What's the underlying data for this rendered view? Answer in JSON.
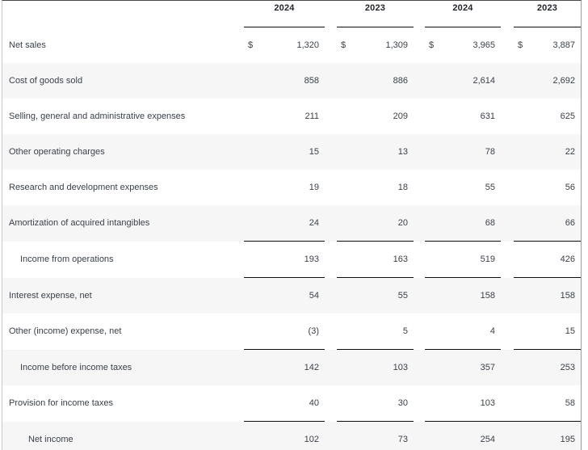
{
  "table": {
    "currency_symbol": "$",
    "columns": [
      "2024",
      "2023",
      "2024",
      "2023"
    ],
    "rows": [
      {
        "label": "Net sales",
        "indent": 0,
        "shade": false,
        "dollar": true,
        "values": [
          "1,320",
          "1,309",
          "3,965",
          "3,887"
        ]
      },
      {
        "label": "Cost of goods sold",
        "indent": 0,
        "shade": true,
        "values": [
          "858",
          "886",
          "2,614",
          "2,692"
        ]
      },
      {
        "label": "Selling, general and administrative expenses",
        "indent": 0,
        "shade": false,
        "values": [
          "211",
          "209",
          "631",
          "625"
        ]
      },
      {
        "label": "Other operating charges",
        "indent": 0,
        "shade": true,
        "values": [
          "15",
          "13",
          "78",
          "22"
        ]
      },
      {
        "label": "Research and development expenses",
        "indent": 0,
        "shade": false,
        "values": [
          "19",
          "18",
          "55",
          "56"
        ]
      },
      {
        "label": "Amortization of acquired intangibles",
        "indent": 0,
        "shade": true,
        "values": [
          "24",
          "20",
          "68",
          "66"
        ]
      },
      {
        "label": "Income from operations",
        "indent": 1,
        "shade": false,
        "rule_top": true,
        "rule_bottom": true,
        "values": [
          "193",
          "163",
          "519",
          "426"
        ]
      },
      {
        "label": "Interest expense, net",
        "indent": 0,
        "shade": true,
        "values": [
          "54",
          "55",
          "158",
          "158"
        ]
      },
      {
        "label": "Other (income) expense, net",
        "indent": 0,
        "shade": false,
        "values": [
          "(3)",
          "5",
          "4",
          "15"
        ]
      },
      {
        "label": "Income before income taxes",
        "indent": 1,
        "shade": true,
        "rule_top": true,
        "values": [
          "142",
          "103",
          "357",
          "253"
        ]
      },
      {
        "label": "Provision for income taxes",
        "indent": 0,
        "shade": false,
        "values": [
          "40",
          "30",
          "103",
          "58"
        ]
      },
      {
        "label": "Net income",
        "indent": 2,
        "shade": true,
        "rule_top": true,
        "merge_gap": 3,
        "values": [
          "102",
          "73",
          "254",
          "195"
        ]
      }
    ]
  },
  "colors": {
    "row_shade": "#f6f6f7",
    "rule": "#0f0f10",
    "text": "#3a414a",
    "header_text": "#23262d",
    "frame_top": "#4a4a4a",
    "frame_left": "#c8c9cb",
    "frame_right": "#9a9c9f"
  }
}
